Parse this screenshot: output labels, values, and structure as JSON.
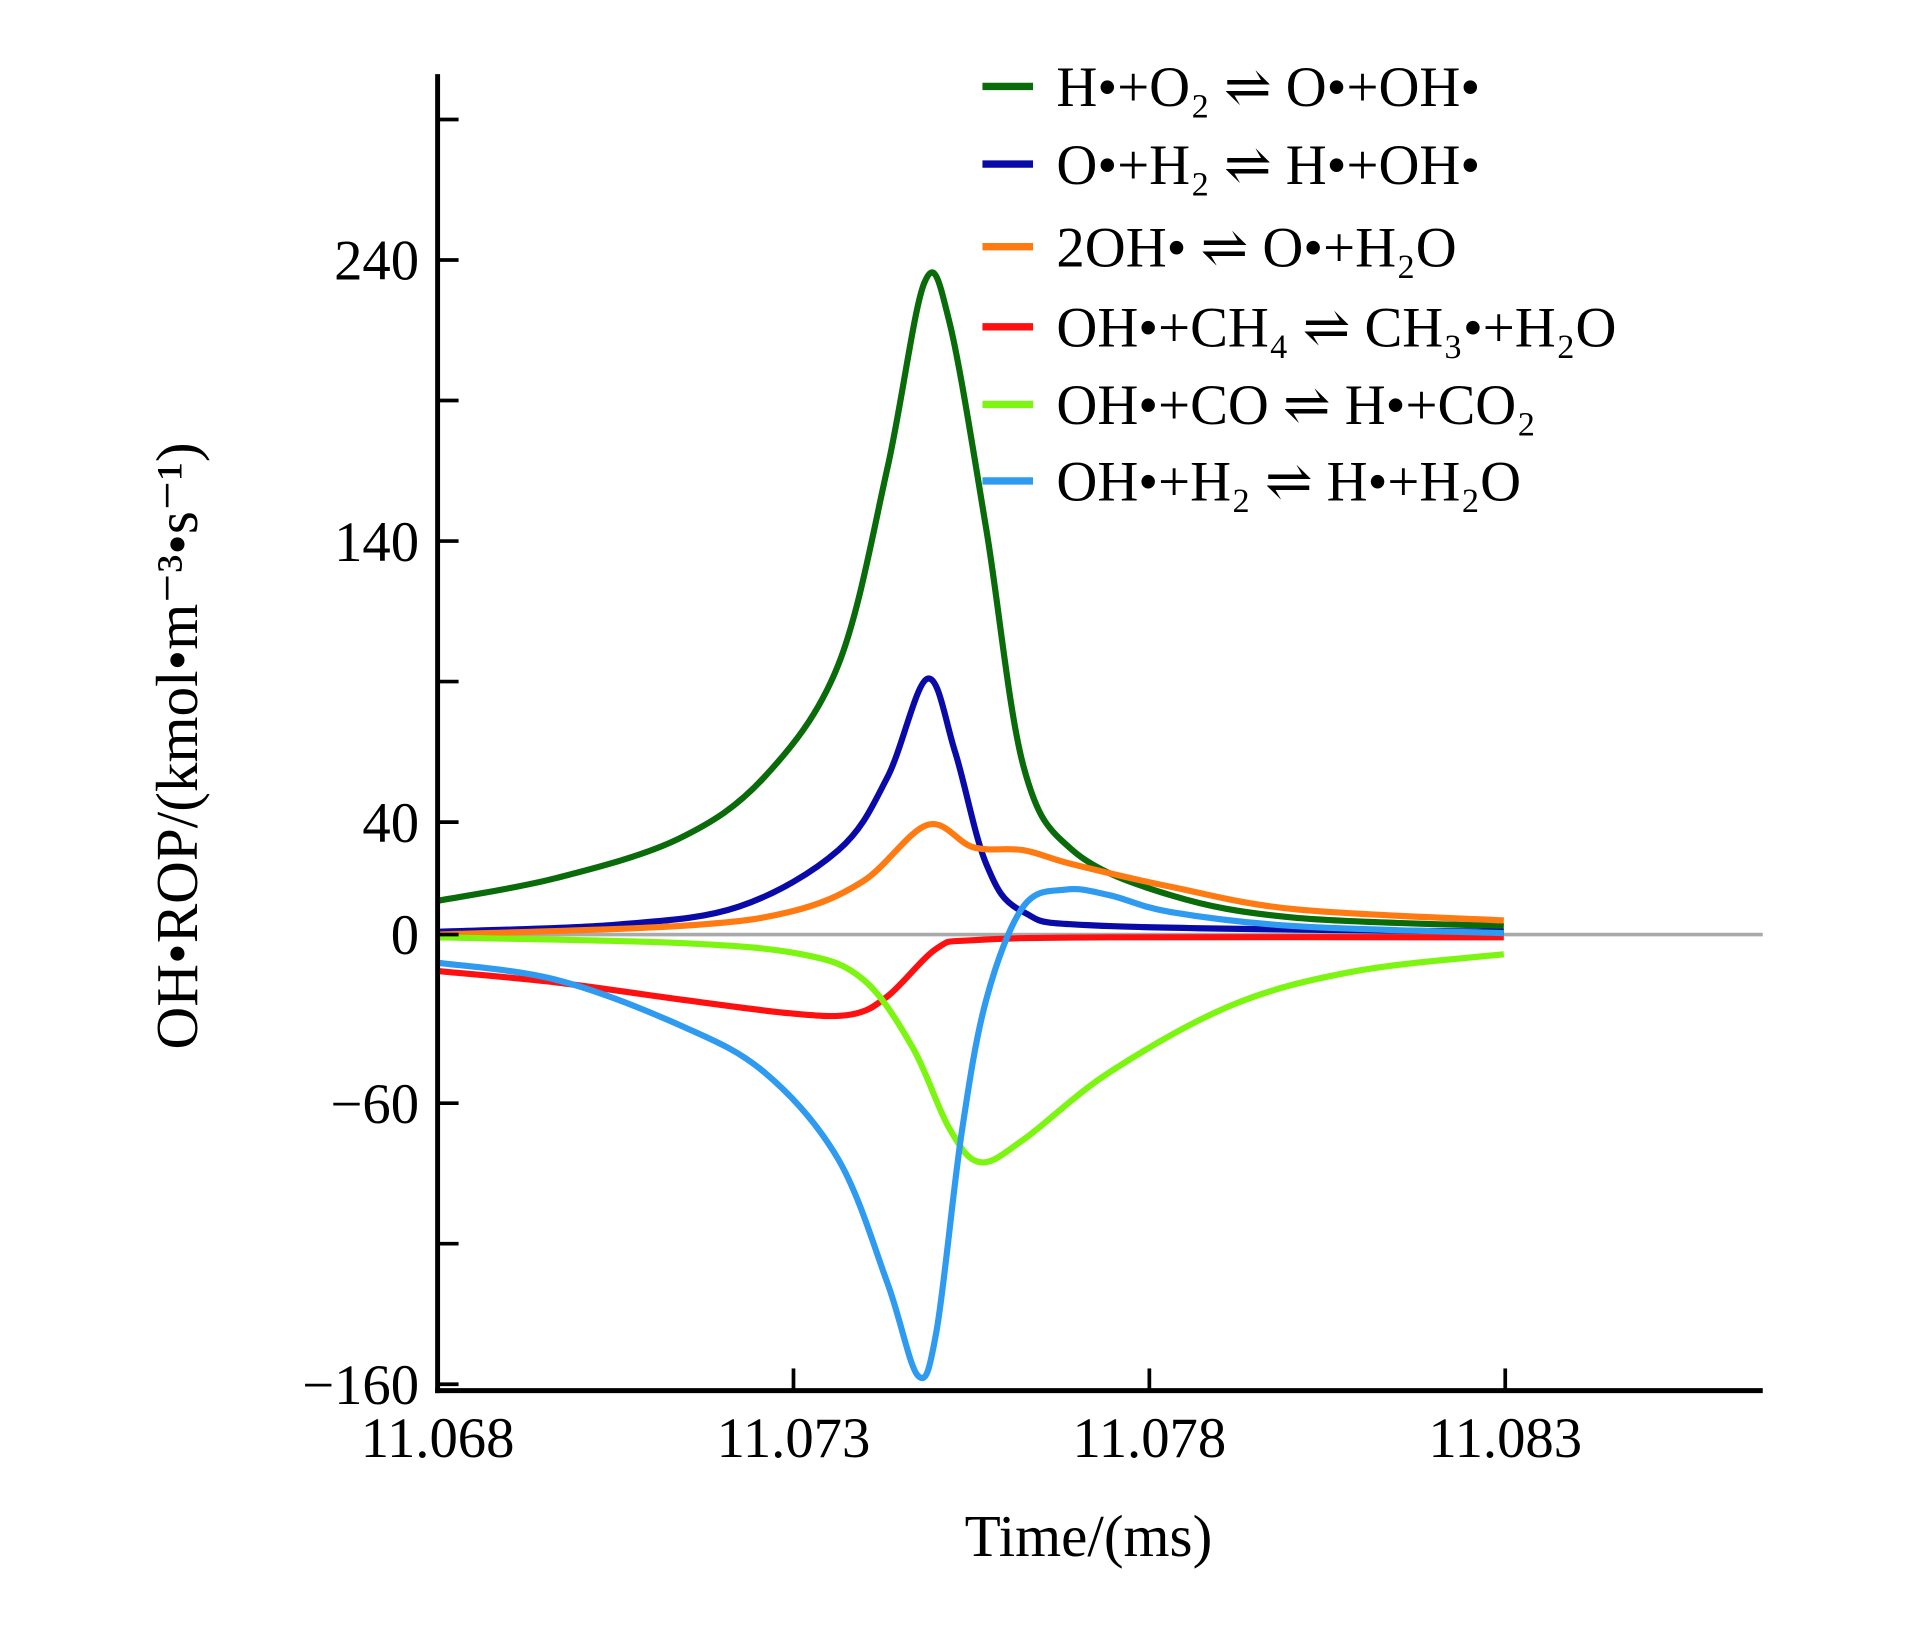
{
  "chart_data": {
    "type": "line",
    "title": "",
    "xlabel": "Time/(ms)",
    "ylabel": "OH•ROP/(kmol•m⁻³•s⁻¹)",
    "xlim": [
      11.068,
      11.0866
    ],
    "ylim": [
      -162,
      306
    ],
    "xticks": [
      11.068,
      11.073,
      11.078,
      11.083
    ],
    "xtick_labels": [
      "11.068",
      "11.073",
      "11.078",
      "11.083"
    ],
    "yticks": [
      240,
      140,
      40,
      0,
      -60,
      -160
    ],
    "ytick_labels": [
      "240",
      "140",
      "40",
      "0",
      "−60",
      "−160"
    ],
    "yminor_ticks": [
      290,
      190,
      90,
      -110
    ],
    "reference_line_y": 0,
    "legend_position": "top-right",
    "series": [
      {
        "name": "H•+O₂ ⇌ O•+OH•",
        "color": "#0a6b0a",
        "points": [
          [
            11.068,
            12
          ],
          [
            11.06965,
            20
          ],
          [
            11.07138,
            34
          ],
          [
            11.07259,
            56
          ],
          [
            11.07363,
            96
          ],
          [
            11.07432,
            166
          ],
          [
            11.07484,
            232
          ],
          [
            11.07519,
            218
          ],
          [
            11.07571,
            144
          ],
          [
            11.07623,
            60
          ],
          [
            11.07692,
            30
          ],
          [
            11.0783,
            14
          ],
          [
            11.08004,
            6
          ],
          [
            11.08298,
            3
          ]
        ]
      },
      {
        "name": "O•+H₂ ⇌ H•+OH•",
        "color": "#0a0aa8",
        "points": [
          [
            11.068,
            1
          ],
          [
            11.07051,
            3.5
          ],
          [
            11.07224,
            10
          ],
          [
            11.07363,
            30
          ],
          [
            11.07432,
            56
          ],
          [
            11.07488,
            91
          ],
          [
            11.07527,
            65
          ],
          [
            11.07571,
            25
          ],
          [
            11.07623,
            8
          ],
          [
            11.07744,
            3
          ],
          [
            11.08298,
            1
          ]
        ]
      },
      {
        "name": "2OH• ⇌ O•+H₂O",
        "color": "#ff7a10",
        "points": [
          [
            11.068,
            0
          ],
          [
            11.07138,
            3
          ],
          [
            11.07294,
            8
          ],
          [
            11.07398,
            19
          ],
          [
            11.07488,
            39
          ],
          [
            11.07553,
            31
          ],
          [
            11.07623,
            30
          ],
          [
            11.07692,
            25
          ],
          [
            11.0783,
            17
          ],
          [
            11.08004,
            9
          ],
          [
            11.08298,
            5
          ]
        ]
      },
      {
        "name": "OH•+CH₄ ⇌ CH₃•+H₂O",
        "color": "#ff1010",
        "points": [
          [
            11.068,
            -13
          ],
          [
            11.06965,
            -17
          ],
          [
            11.07138,
            -23
          ],
          [
            11.07294,
            -28
          ],
          [
            11.0738,
            -28.5
          ],
          [
            11.07432,
            -22
          ],
          [
            11.07501,
            -5
          ],
          [
            11.07553,
            -2
          ],
          [
            11.07744,
            -1
          ],
          [
            11.08298,
            -1
          ]
        ]
      },
      {
        "name": "OH•+CO ⇌ H•+CO₂",
        "color": "#7cf510",
        "points": [
          [
            11.068,
            -1
          ],
          [
            11.07138,
            -3
          ],
          [
            11.07311,
            -7
          ],
          [
            11.07398,
            -16
          ],
          [
            11.07467,
            -40
          ],
          [
            11.07519,
            -69
          ],
          [
            11.07562,
            -81
          ],
          [
            11.07623,
            -73
          ],
          [
            11.07744,
            -49
          ],
          [
            11.07917,
            -25
          ],
          [
            11.0809,
            -13
          ],
          [
            11.08298,
            -7
          ]
        ]
      },
      {
        "name": "OH•+H₂ ⇌ H•+H₂O",
        "color": "#2e9bf0",
        "points": [
          [
            11.068,
            -10
          ],
          [
            11.06965,
            -16
          ],
          [
            11.07138,
            -32
          ],
          [
            11.07259,
            -49
          ],
          [
            11.07363,
            -80
          ],
          [
            11.07432,
            -124
          ],
          [
            11.07475,
            -157
          ],
          [
            11.07501,
            -141
          ],
          [
            11.07536,
            -71
          ],
          [
            11.07571,
            -23
          ],
          [
            11.07623,
            10
          ],
          [
            11.07683,
            16
          ],
          [
            11.07744,
            14
          ],
          [
            11.0783,
            8
          ],
          [
            11.08004,
            3
          ],
          [
            11.08298,
            0.5
          ]
        ]
      }
    ]
  }
}
